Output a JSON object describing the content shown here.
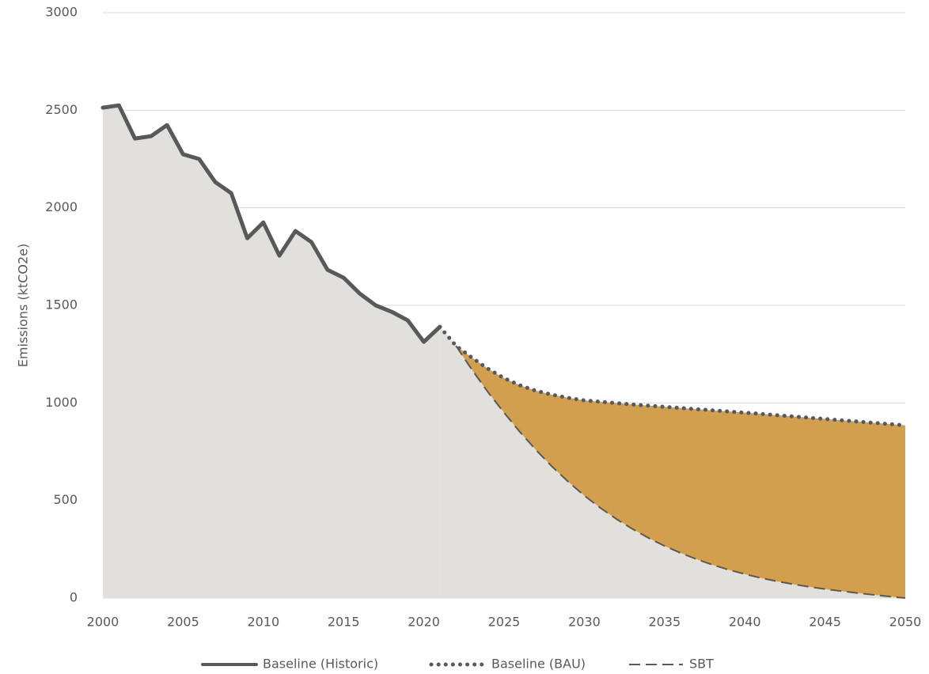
{
  "chart_data": {
    "type": "line",
    "y_label": "Emissions (ktCO2e)",
    "x": [
      2000,
      2001,
      2002,
      2003,
      2004,
      2005,
      2006,
      2007,
      2008,
      2009,
      2010,
      2011,
      2012,
      2013,
      2014,
      2015,
      2016,
      2017,
      2018,
      2019,
      2020,
      2021,
      2022,
      2023,
      2024,
      2025,
      2026,
      2027,
      2028,
      2029,
      2030,
      2031,
      2032,
      2033,
      2034,
      2035,
      2036,
      2037,
      2038,
      2039,
      2040,
      2041,
      2042,
      2043,
      2044,
      2045,
      2046,
      2047,
      2048,
      2049,
      2050
    ],
    "series": [
      {
        "name": "Baseline (Historic)",
        "color": "#595959",
        "dash": "solid",
        "values": [
          2513,
          2525,
          2355,
          2367,
          2424,
          2274,
          2250,
          2132,
          2075,
          1844,
          1925,
          1755,
          1881,
          1824,
          1682,
          1642,
          1561,
          1500,
          1467,
          1423,
          1313,
          1390,
          null,
          null,
          null,
          null,
          null,
          null,
          null,
          null,
          null,
          null,
          null,
          null,
          null,
          null,
          null,
          null,
          null,
          null,
          null,
          null,
          null,
          null,
          null,
          null,
          null,
          null,
          null,
          null,
          null
        ]
      },
      {
        "name": "Baseline (BAU)",
        "color": "#595959",
        "dash": "dotted",
        "values": [
          null,
          null,
          null,
          null,
          null,
          null,
          null,
          null,
          null,
          null,
          null,
          null,
          null,
          null,
          null,
          null,
          null,
          null,
          null,
          null,
          null,
          1390,
          1293,
          1232,
          1175,
          1127,
          1090,
          1062,
          1042,
          1026,
          1013,
          1006,
          999,
          992,
          986,
          980,
          974,
          968,
          962,
          956,
          950,
          944,
          937,
          931,
          924,
          918,
          911,
          905,
          898,
          892,
          885
        ]
      },
      {
        "name": "SBT",
        "color": "#595959",
        "dash": "dashed",
        "values": [
          null,
          null,
          null,
          null,
          null,
          null,
          null,
          null,
          null,
          null,
          null,
          null,
          null,
          null,
          null,
          null,
          null,
          null,
          null,
          null,
          null,
          null,
          1293,
          1170,
          1055,
          950,
          850,
          758,
          673,
          596,
          525,
          462,
          405,
          354,
          308,
          267,
          231,
          199,
          170,
          145,
          123,
          103,
          86,
          71,
          58,
          46,
          36,
          26,
          17,
          8,
          0
        ]
      }
    ],
    "below_fill": "#e1e0dd",
    "gap_fill": "#d19f4d",
    "xlim": [
      2000,
      2050
    ],
    "xticks": [
      2000,
      2005,
      2010,
      2015,
      2020,
      2025,
      2030,
      2035,
      2040,
      2045,
      2050
    ],
    "ylim": [
      0,
      3000
    ],
    "yticks": [
      0,
      500,
      1000,
      1500,
      2000,
      2500,
      3000
    ],
    "grid": true,
    "legend": "bottom"
  }
}
